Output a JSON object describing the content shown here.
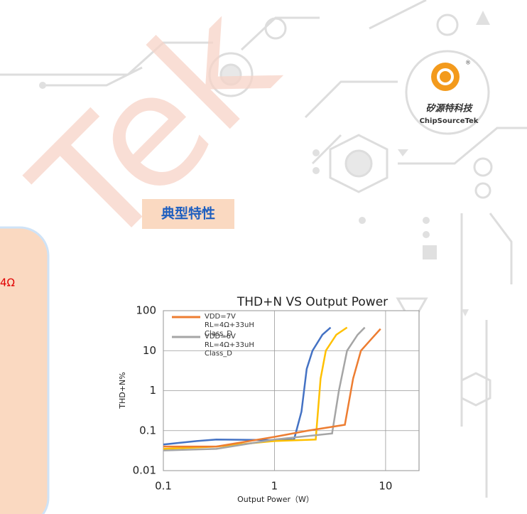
{
  "watermark": "Tek",
  "logo": {
    "name": "矽源特科技",
    "brand": "ChipSourceTek",
    "mark": "®"
  },
  "section_title": "典型特性",
  "side_text": "4Ω",
  "chart_data": {
    "type": "line",
    "title": "THD+N VS Output Power",
    "x_label": "Output Power（W）",
    "y_label": "THD+N%",
    "xscale": "log",
    "yscale": "log",
    "grid": true,
    "legend": "top-left",
    "xlim": [
      0.1,
      20
    ],
    "ylim": [
      0.01,
      100
    ],
    "xticks": [
      0.1,
      1,
      10
    ],
    "yticks": [
      0.01,
      0.1,
      1,
      10,
      100
    ],
    "series": [
      {
        "color": "#4472c4",
        "x": [
          0.1,
          0.2,
          0.3,
          1,
          1.5,
          1.75,
          1.95,
          2.2,
          2.7,
          3.2
        ],
        "values": [
          0.045,
          0.055,
          0.06,
          0.058,
          0.06,
          0.3,
          3.5,
          10,
          25,
          38
        ]
      },
      {
        "color": "#ffc000",
        "x": [
          0.1,
          0.3,
          1,
          2.35,
          2.6,
          2.9,
          3.6,
          4.5
        ],
        "values": [
          0.035,
          0.04,
          0.055,
          0.06,
          2,
          10,
          25,
          38
        ]
      },
      {
        "name": "VDD=6V  RL=4Ω+33uH Class_D",
        "color": "#a5a5a5",
        "x": [
          0.1,
          0.3,
          1,
          3.3,
          3.8,
          4.5,
          5.6,
          6.5
        ],
        "values": [
          0.032,
          0.035,
          0.06,
          0.085,
          1,
          10,
          25,
          38
        ]
      },
      {
        "name": "VDD=7V  RL=4Ω+33uH Class_D",
        "color": "#ed7d31",
        "x": [
          0.1,
          0.3,
          1,
          2,
          4.3,
          5.1,
          6.0,
          7.5,
          9
        ],
        "values": [
          0.04,
          0.04,
          0.07,
          0.1,
          0.14,
          2,
          10,
          20,
          35
        ]
      }
    ]
  }
}
